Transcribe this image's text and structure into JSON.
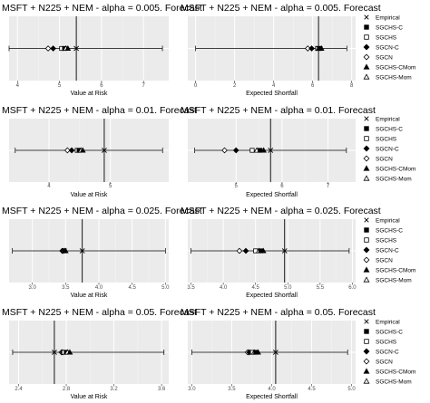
{
  "chart_data": {
    "type": "scatter",
    "legend": {
      "placement": "right",
      "entries": [
        {
          "name": "Empirical",
          "shape": "x"
        },
        {
          "name": "SGCHS-C",
          "shape": "filled-square"
        },
        {
          "name": "SGCHS",
          "shape": "open-square"
        },
        {
          "name": "SGCN-C",
          "shape": "filled-diamond"
        },
        {
          "name": "SGCN",
          "shape": "open-diamond"
        },
        {
          "name": "SGCHS-CMom",
          "shape": "filled-triangle"
        },
        {
          "name": "SGCHS-Mom",
          "shape": "open-triangle"
        }
      ]
    },
    "grid": true,
    "panels": [
      {
        "title": "MSFT + N225 + NEM - alpha = 0.005. Forecast",
        "xlabel": "Value at Risk",
        "xlim": [
          3.8,
          7.6
        ],
        "ticks": [
          4,
          5,
          6,
          7
        ],
        "tick_labels": [
          "4",
          "5",
          "6",
          "7"
        ],
        "ci": [
          3.8,
          7.45
        ],
        "empirical": 5.4,
        "points": [
          {
            "series": "SGCN",
            "x": 4.73
          },
          {
            "series": "SGCN-C",
            "x": 4.85
          },
          {
            "series": "SGCHS",
            "x": 5.05
          },
          {
            "series": "SGCHS-C",
            "x": 5.12
          },
          {
            "series": "SGCHS-Mom",
            "x": 5.15
          },
          {
            "series": "SGCHS-CMom",
            "x": 5.2
          }
        ]
      },
      {
        "title": "MSFT + N225 + NEM - alpha = 0.005. Forecast",
        "xlabel": "Expected Shortfall",
        "xlim": [
          -0.4,
          8.2
        ],
        "ticks": [
          0,
          2,
          4,
          6,
          8
        ],
        "tick_labels": [
          "0",
          "2",
          "4",
          "6",
          "8"
        ],
        "ci": [
          0.0,
          7.75
        ],
        "empirical": 6.3,
        "points": [
          {
            "series": "SGCN",
            "x": 5.75
          },
          {
            "series": "SGCN-C",
            "x": 5.95
          },
          {
            "series": "SGCHS",
            "x": 6.25
          },
          {
            "series": "SGCHS-Mom",
            "x": 6.3
          },
          {
            "series": "SGCHS-C",
            "x": 6.38
          },
          {
            "series": "SGCHS-CMom",
            "x": 6.45
          }
        ]
      },
      {
        "title": "MSFT + N225 + NEM - alpha = 0.01. Forecast",
        "xlabel": "Value at Risk",
        "xlim": [
          3.35,
          5.95
        ],
        "ticks": [
          4,
          5
        ],
        "tick_labels": [
          "4",
          "5"
        ],
        "ci": [
          3.45,
          5.85
        ],
        "empirical": 4.9,
        "points": [
          {
            "series": "SGCN",
            "x": 4.3
          },
          {
            "series": "SGCN-C",
            "x": 4.37
          },
          {
            "series": "SGCHS",
            "x": 4.46
          },
          {
            "series": "SGCHS-C",
            "x": 4.49
          },
          {
            "series": "SGCHS-Mom",
            "x": 4.52
          },
          {
            "series": "SGCHS-CMom",
            "x": 4.55
          }
        ]
      },
      {
        "title": "MSFT + N225 + NEM - alpha = 0.01. Forecast",
        "xlabel": "Expected Shortfall",
        "xlim": [
          3.95,
          7.6
        ],
        "ticks": [
          5,
          6,
          7
        ],
        "tick_labels": [
          "5",
          "6",
          "7"
        ],
        "ci": [
          4.1,
          7.4
        ],
        "empirical": 5.75,
        "points": [
          {
            "series": "SGCN",
            "x": 4.75
          },
          {
            "series": "SGCN-C",
            "x": 5.0
          },
          {
            "series": "SGCHS",
            "x": 5.35
          },
          {
            "series": "SGCHS-Mom",
            "x": 5.45
          },
          {
            "series": "SGCHS-C",
            "x": 5.52
          },
          {
            "series": "SGCHS-CMom",
            "x": 5.6
          }
        ]
      },
      {
        "title": "MSFT + N225 + NEM - alpha = 0.025. Forecast",
        "xlabel": "Value at Risk",
        "xlim": [
          2.65,
          5.05
        ],
        "ticks": [
          3.0,
          3.5,
          4.0,
          4.5,
          5.0
        ],
        "tick_labels": [
          "3.0",
          "3.5",
          "4.0",
          "4.5",
          "5.0"
        ],
        "ci": [
          2.7,
          5.0
        ],
        "empirical": 3.75,
        "points": [
          {
            "series": "SGCN",
            "x": 3.45
          },
          {
            "series": "SGCN-C",
            "x": 3.46
          },
          {
            "series": "SGCHS",
            "x": 3.47
          },
          {
            "series": "SGCHS-C",
            "x": 3.48
          },
          {
            "series": "SGCHS-Mom",
            "x": 3.49
          },
          {
            "series": "SGCHS-CMom",
            "x": 3.5
          }
        ]
      },
      {
        "title": "MSFT + N225 + NEM - alpha = 0.025. Forecast",
        "xlabel": "Expected Shortfall",
        "xlim": [
          3.45,
          6.05
        ],
        "ticks": [
          3.5,
          4.0,
          4.5,
          5.0,
          5.5,
          6.0
        ],
        "tick_labels": [
          "3.5",
          "4.0",
          "4.5",
          "5.0",
          "5.5",
          "6.0"
        ],
        "ci": [
          3.5,
          5.95
        ],
        "empirical": 4.95,
        "points": [
          {
            "series": "SGCN",
            "x": 4.25
          },
          {
            "series": "SGCN-C",
            "x": 4.35
          },
          {
            "series": "SGCHS",
            "x": 4.5
          },
          {
            "series": "SGCHS-Mom",
            "x": 4.55
          },
          {
            "series": "SGCHS-C",
            "x": 4.58
          },
          {
            "series": "SGCHS-CMom",
            "x": 4.62
          }
        ]
      },
      {
        "title": "MSFT + N225 + NEM - alpha = 0.05. Forecast",
        "xlabel": "Value at Risk",
        "xlim": [
          2.32,
          3.66
        ],
        "ticks": [
          2.4,
          2.8,
          3.2,
          3.6
        ],
        "tick_labels": [
          "2.4",
          "2.8",
          "3.2",
          "3.6"
        ],
        "ci": [
          2.35,
          3.62
        ],
        "empirical": 2.7,
        "points": [
          {
            "series": "SGCN",
            "x": 2.76
          },
          {
            "series": "SGCN-C",
            "x": 2.77
          },
          {
            "series": "SGCHS",
            "x": 2.78
          },
          {
            "series": "SGCHS-C",
            "x": 2.8
          },
          {
            "series": "SGCHS-Mom",
            "x": 2.81
          },
          {
            "series": "SGCHS-CMom",
            "x": 2.83
          }
        ]
      },
      {
        "title": "MSFT + N225 + NEM - alpha = 0.05. Forecast",
        "xlabel": "Expected Shortfall",
        "xlim": [
          2.95,
          5.05
        ],
        "ticks": [
          3.0,
          3.5,
          4.0,
          4.5,
          5.0
        ],
        "tick_labels": [
          "3.0",
          "3.5",
          "4.0",
          "4.5",
          "5.0"
        ],
        "ci": [
          3.0,
          4.95
        ],
        "empirical": 4.05,
        "points": [
          {
            "series": "SGCN",
            "x": 3.7
          },
          {
            "series": "SGCN-C",
            "x": 3.72
          },
          {
            "series": "SGCHS",
            "x": 3.76
          },
          {
            "series": "SGCHS-Mom",
            "x": 3.78
          },
          {
            "series": "SGCHS-C",
            "x": 3.8
          },
          {
            "series": "SGCHS-CMom",
            "x": 3.83
          }
        ]
      }
    ]
  }
}
